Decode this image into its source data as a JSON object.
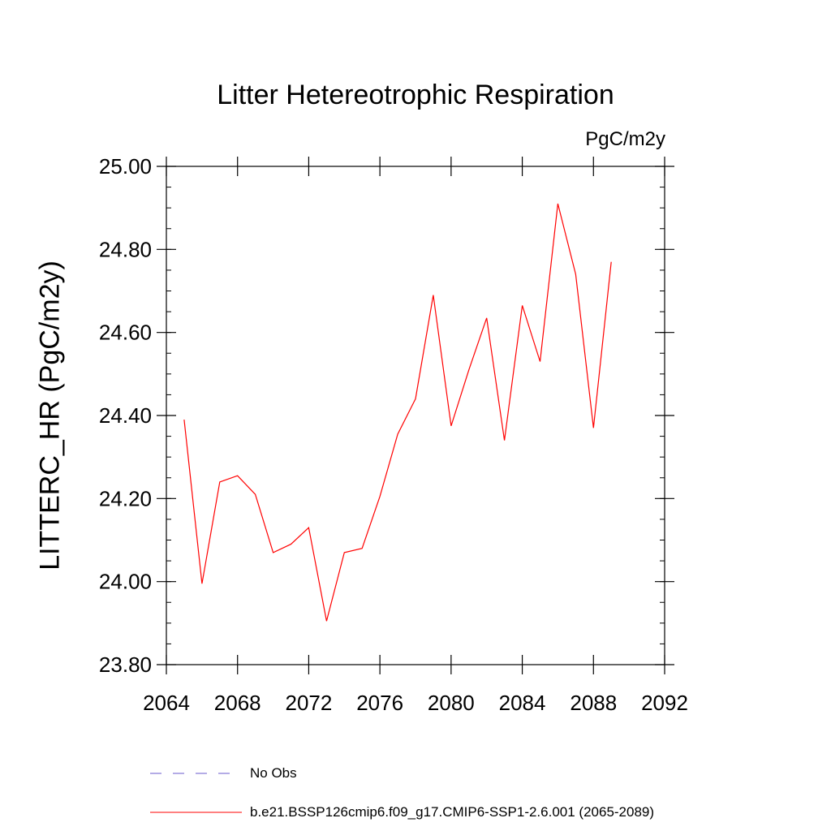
{
  "chart_data": {
    "type": "line",
    "title": "Litter Hetereotrophic Respiration",
    "units_label": "PgC/m2y",
    "ylabel": "LITTERC_HR  (PgC/m2y)",
    "xlabel": "",
    "xlim": [
      2064,
      2092
    ],
    "ylim": [
      23.8,
      25.0
    ],
    "x_ticks": [
      2064,
      2068,
      2072,
      2076,
      2080,
      2084,
      2088,
      2092
    ],
    "x_tick_labels": [
      "2064",
      "2068",
      "2072",
      "2076",
      "2080",
      "2084",
      "2088",
      "2092"
    ],
    "y_ticks": [
      23.8,
      24.0,
      24.2,
      24.4,
      24.6,
      24.8,
      25.0
    ],
    "y_tick_labels": [
      "23.80",
      "24.00",
      "24.20",
      "24.40",
      "24.60",
      "24.80",
      "25.00"
    ],
    "grid": false,
    "legend_position": "bottom",
    "series": [
      {
        "name": "b.e21.BSSP126cmip6.f09_g17.CMIP6-SSP1-2.6.001 (2065-2089)",
        "color": "#ff0000",
        "style": "solid",
        "x": [
          2065,
          2066,
          2067,
          2068,
          2069,
          2070,
          2071,
          2072,
          2073,
          2074,
          2075,
          2076,
          2077,
          2078,
          2079,
          2080,
          2081,
          2082,
          2083,
          2084,
          2085,
          2086,
          2087,
          2088,
          2089
        ],
        "values": [
          24.39,
          23.995,
          24.24,
          24.255,
          24.21,
          24.07,
          24.09,
          24.13,
          23.905,
          24.07,
          24.08,
          24.205,
          24.355,
          24.44,
          24.69,
          24.375,
          24.51,
          24.635,
          24.34,
          24.665,
          24.53,
          24.91,
          24.74,
          24.37,
          24.77
        ]
      }
    ],
    "legend": [
      {
        "label": "No Obs",
        "color": "#6a5acd",
        "style": "dashed"
      },
      {
        "label": "b.e21.BSSP126cmip6.f09_g17.CMIP6-SSP1-2.6.001 (2065-2089)",
        "color": "#ff0000",
        "style": "solid"
      }
    ]
  }
}
